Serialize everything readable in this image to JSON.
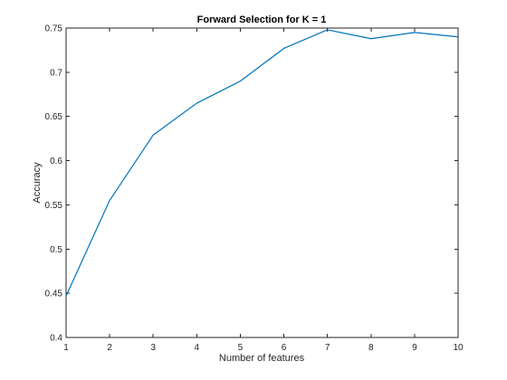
{
  "colors": {
    "series": "#0072BD",
    "axis": "#262626",
    "background": "#ffffff"
  },
  "chart_data": {
    "type": "line",
    "title": "Forward Selection for K = 1",
    "xlabel": "Number of features",
    "ylabel": "Accuracy",
    "xlim": [
      1,
      10
    ],
    "ylim": [
      0.4,
      0.75
    ],
    "grid": false,
    "x_ticks": [
      1,
      2,
      3,
      4,
      5,
      6,
      7,
      8,
      9,
      10
    ],
    "x_tick_labels": [
      "1",
      "2",
      "3",
      "4",
      "5",
      "6",
      "7",
      "8",
      "9",
      "10"
    ],
    "y_ticks": [
      0.4,
      0.45,
      0.5,
      0.55,
      0.6,
      0.65,
      0.7,
      0.75
    ],
    "y_tick_labels": [
      "0.4",
      "0.45",
      "0.5",
      "0.55",
      "0.6",
      "0.65",
      "0.7",
      "0.75"
    ],
    "series": [
      {
        "x": [
          1,
          2,
          3,
          4,
          5,
          6,
          7,
          8,
          9,
          10
        ],
        "values": [
          0.447,
          0.555,
          0.629,
          0.665,
          0.69,
          0.727,
          0.748,
          0.738,
          0.745,
          0.74
        ]
      }
    ]
  }
}
